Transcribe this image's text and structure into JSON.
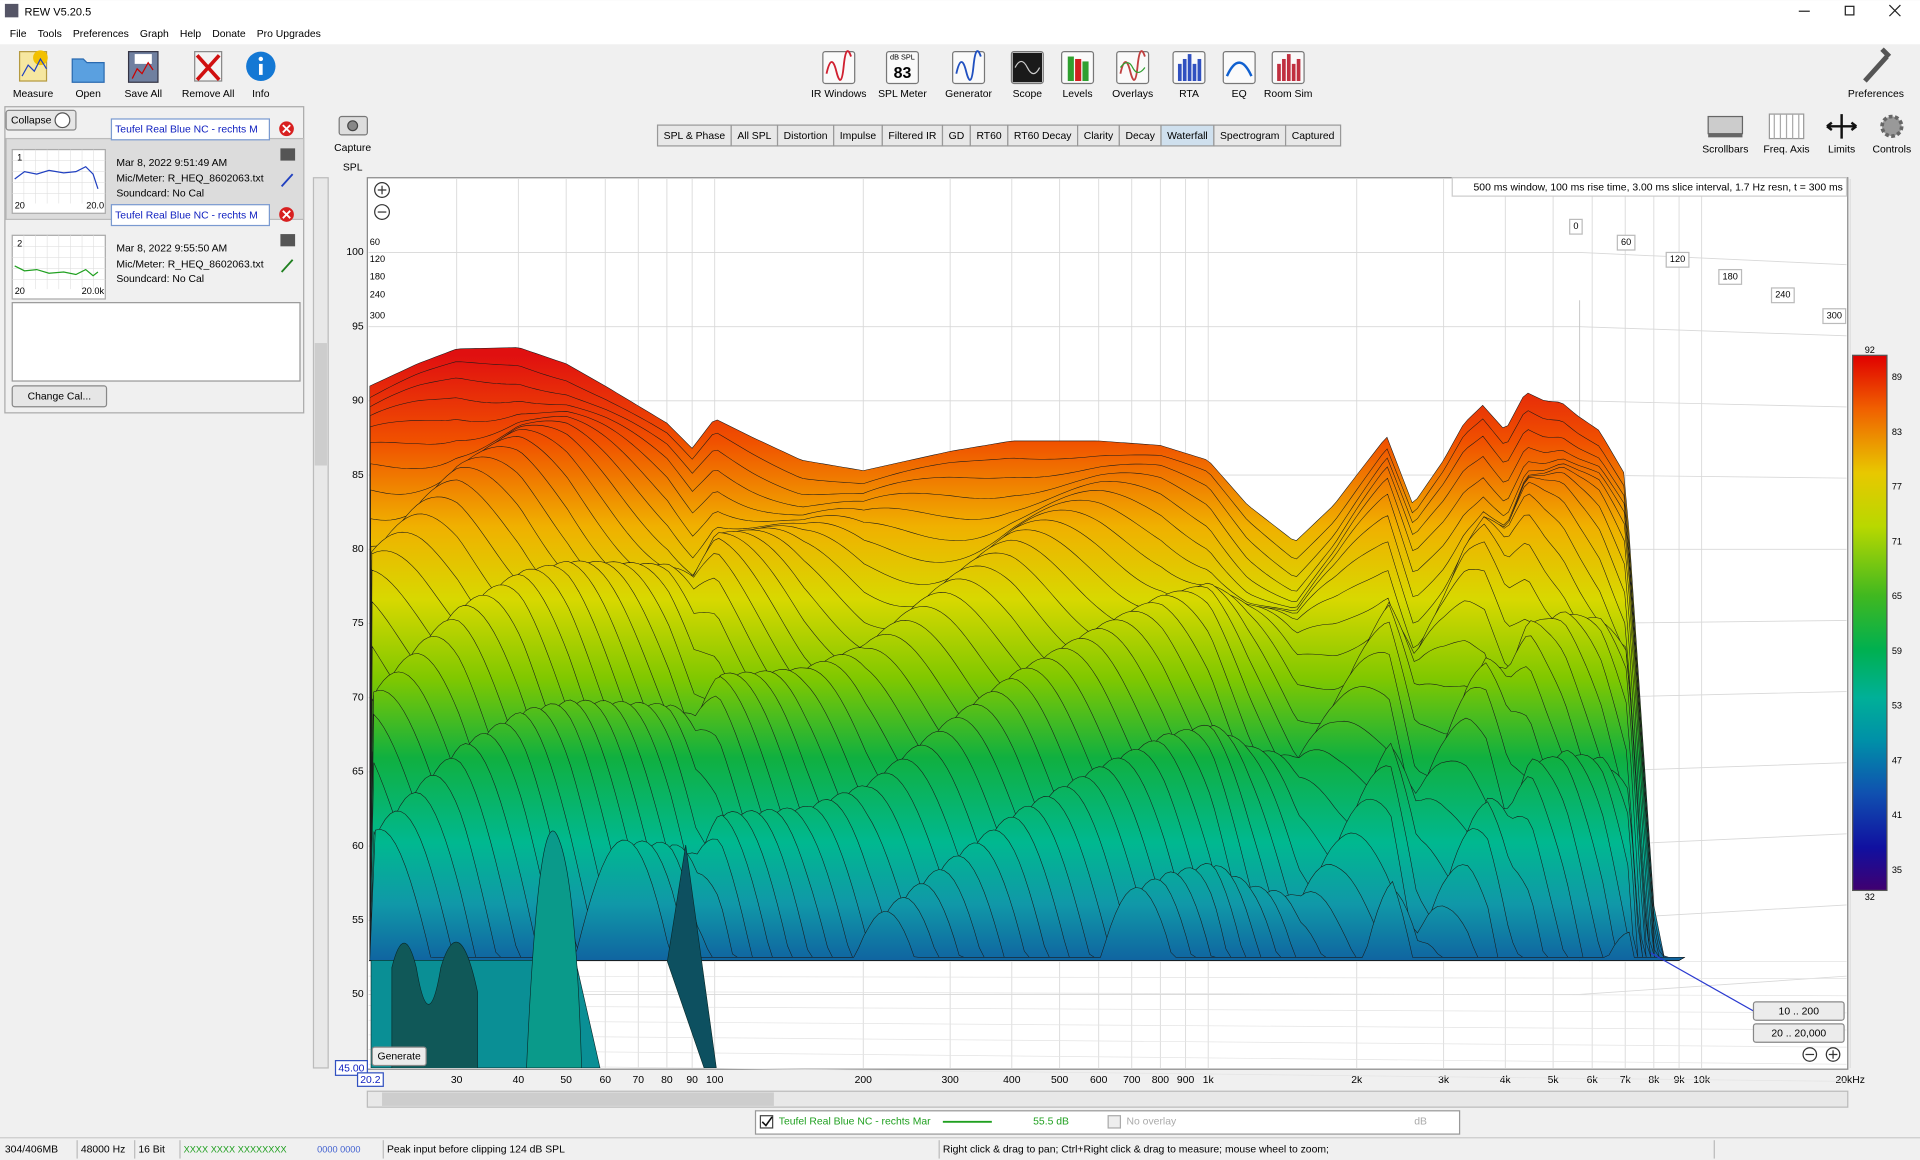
{
  "window": {
    "title": "REW V5.20.5"
  },
  "menu": [
    "File",
    "Tools",
    "Preferences",
    "Graph",
    "Help",
    "Donate",
    "Pro Upgrades"
  ],
  "toolbar_left": [
    "Measure",
    "Open",
    "Save All",
    "Remove All",
    "Info"
  ],
  "toolbar_center": [
    "IR Windows",
    "SPL Meter",
    "Generator",
    "Scope",
    "Levels",
    "Overlays",
    "RTA",
    "EQ",
    "Room Sim"
  ],
  "spl_meter_icon": {
    "unit": "dB SPL",
    "reading": "83"
  },
  "preferences": "Preferences",
  "tabs": [
    "SPL & Phase",
    "All SPL",
    "Distortion",
    "Impulse",
    "Filtered IR",
    "GD",
    "RT60",
    "RT60 Decay",
    "Clarity",
    "Decay",
    "Waterfall",
    "Spectrogram",
    "Captured"
  ],
  "active_tab": "Waterfall",
  "right_tools": [
    "Scrollbars",
    "Freq. Axis",
    "Limits",
    "Controls"
  ],
  "sidebar": {
    "collapse": "Collapse",
    "measurements": [
      {
        "index": "1",
        "name": "Teufel Real Blue NC - rechts M",
        "date": "Mar 8, 2022 9:51:49 AM",
        "mic": "Mic/Meter: R_HEQ_8602063.txt",
        "soundcard": "Soundcard: No Cal",
        "thumb_min": "20",
        "thumb_max": "20.0"
      },
      {
        "index": "2",
        "name": "Teufel Real Blue NC - rechts M",
        "date": "Mar 8, 2022 9:55:50 AM",
        "mic": "Mic/Meter: R_HEQ_8602063.txt",
        "soundcard": "Soundcard: No Cal",
        "thumb_min": "20",
        "thumb_max": "20.0k"
      }
    ],
    "change_cal": "Change Cal..."
  },
  "capture": "Capture",
  "graph": {
    "y_label": "SPL",
    "info": "500 ms window, 100 ms rise time, 3.00 ms slice interval, 1.7 Hz resn, t = 300 ms",
    "yticks": [
      50,
      55,
      60,
      65,
      70,
      75,
      80,
      85,
      90,
      95,
      100
    ],
    "xticks": [
      {
        "value": 30,
        "label": "30"
      },
      {
        "value": 40,
        "label": "40"
      },
      {
        "value": 50,
        "label": "50"
      },
      {
        "value": 60,
        "label": "60"
      },
      {
        "value": 70,
        "label": "70"
      },
      {
        "value": 80,
        "label": "80"
      },
      {
        "value": 90,
        "label": "90"
      },
      {
        "value": 100,
        "label": "100"
      },
      {
        "value": 200,
        "label": "200"
      },
      {
        "value": 300,
        "label": "300"
      },
      {
        "value": 400,
        "label": "400"
      },
      {
        "value": 500,
        "label": "500"
      },
      {
        "value": 600,
        "label": "600"
      },
      {
        "value": 700,
        "label": "700"
      },
      {
        "value": 800,
        "label": "800"
      },
      {
        "value": 900,
        "label": "900"
      },
      {
        "value": 1000,
        "label": "1k"
      },
      {
        "value": 2000,
        "label": "2k"
      },
      {
        "value": 3000,
        "label": "3k"
      },
      {
        "value": 4000,
        "label": "4k"
      },
      {
        "value": 5000,
        "label": "5k"
      },
      {
        "value": 6000,
        "label": "6k"
      },
      {
        "value": 7000,
        "label": "7k"
      },
      {
        "value": 8000,
        "label": "8k"
      },
      {
        "value": 9000,
        "label": "9k"
      },
      {
        "value": 10000,
        "label": "10k"
      },
      {
        "value": 20000,
        "label": "20kHz"
      }
    ],
    "time_labels": [
      "0",
      "60",
      "120",
      "180",
      "240",
      "300"
    ],
    "time_labels_left": [
      "60",
      "120",
      "180",
      "240",
      "300"
    ],
    "color_scale": [
      92,
      89,
      83,
      77,
      71,
      65,
      59,
      53,
      47,
      41,
      35,
      32
    ],
    "range_buttons": [
      "10 .. 200",
      "20 .. 20,000"
    ],
    "generate": "Generate",
    "y_min_field": "45.00",
    "x_min_field": "20.2"
  },
  "legend": {
    "name": "Teufel Real Blue NC - rechts Mar",
    "level": "55.5 dB",
    "overlay": "No overlay",
    "overlay_unit": "dB"
  },
  "status": [
    "304/406MB",
    "48000 Hz",
    "16 Bit",
    "XXXX XXXX XXXXXXXX",
    "0000 0000",
    "Peak input before clipping 124 dB SPL",
    "Right click & drag to pan; Ctrl+Right click & drag to measure; mouse wheel to zoom;"
  ]
}
